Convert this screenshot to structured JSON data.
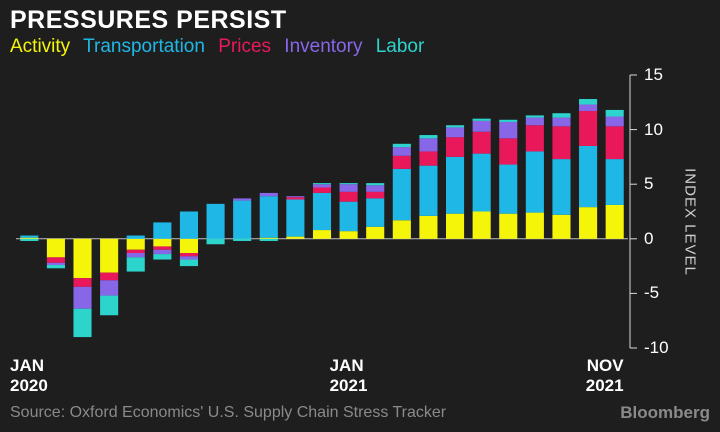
{
  "header": {
    "title": "PRESSURES PERSIST"
  },
  "footer": {
    "source": "Source: Oxford Economics' U.S. Supply Chain Stress Tracker",
    "brand": "Bloomberg"
  },
  "chart_data": {
    "type": "bar",
    "stacked": true,
    "title": "PRESSURES PERSIST",
    "ylabel": "INDEX LEVEL",
    "ylim": [
      -10,
      15
    ],
    "yticks": [
      15,
      10,
      5,
      0,
      -5,
      -10
    ],
    "yaxis_position": "right",
    "legend_position": "top-left",
    "grid": false,
    "categories": [
      "Jan 2020",
      "Feb 2020",
      "Mar 2020",
      "Apr 2020",
      "May 2020",
      "Jun 2020",
      "Jul 2020",
      "Aug 2020",
      "Sep 2020",
      "Oct 2020",
      "Nov 2020",
      "Dec 2020",
      "Jan 2021",
      "Feb 2021",
      "Mar 2021",
      "Apr 2021",
      "May 2021",
      "Jun 2021",
      "Jul 2021",
      "Aug 2021",
      "Sep 2021",
      "Oct 2021",
      "Nov 2021"
    ],
    "x_tick_labels": [
      {
        "index": 0,
        "line1": "JAN",
        "line2": "2020"
      },
      {
        "index": 12,
        "line1": "JAN",
        "line2": "2021"
      },
      {
        "index": 22,
        "line1": "NOV",
        "line2": "2021"
      }
    ],
    "series": [
      {
        "name": "Activity",
        "color": "#f5f50a",
        "values": [
          0.1,
          -1.7,
          -3.6,
          -3.1,
          -1.0,
          -0.7,
          -1.3,
          0.0,
          0.0,
          0.1,
          0.2,
          0.8,
          0.7,
          1.1,
          1.7,
          2.1,
          2.3,
          2.5,
          2.3,
          2.4,
          2.2,
          2.9,
          3.1
        ]
      },
      {
        "name": "Transportation",
        "color": "#1fb8e6",
        "values": [
          0.2,
          0.0,
          0.0,
          0.0,
          0.3,
          1.5,
          2.5,
          3.2,
          3.5,
          3.8,
          3.4,
          3.4,
          2.7,
          2.6,
          4.7,
          4.6,
          5.2,
          5.3,
          4.5,
          5.6,
          5.1,
          5.6,
          4.2
        ]
      },
      {
        "name": "Prices",
        "color": "#e8185a",
        "values": [
          0.0,
          -0.5,
          -0.8,
          -0.7,
          -0.3,
          -0.3,
          -0.3,
          0.0,
          0.0,
          0.0,
          0.2,
          0.5,
          0.9,
          0.6,
          1.2,
          1.3,
          1.8,
          2.0,
          2.4,
          2.4,
          3.0,
          3.2,
          3.0
        ]
      },
      {
        "name": "Inventory",
        "color": "#8866e8",
        "values": [
          0.0,
          -0.2,
          -2.0,
          -1.4,
          -0.4,
          -0.4,
          -0.3,
          0.0,
          0.2,
          0.3,
          0.1,
          0.3,
          0.7,
          0.6,
          0.8,
          1.2,
          0.9,
          1.0,
          1.5,
          0.7,
          0.8,
          0.6,
          0.9
        ]
      },
      {
        "name": "Labor",
        "color": "#2cd4cc",
        "values": [
          -0.2,
          -0.3,
          -2.6,
          -1.8,
          -1.3,
          -0.5,
          -0.6,
          -0.5,
          -0.2,
          -0.2,
          0.0,
          0.1,
          0.1,
          0.2,
          0.3,
          0.3,
          0.2,
          0.2,
          0.2,
          0.2,
          0.4,
          0.5,
          0.6
        ]
      }
    ]
  }
}
